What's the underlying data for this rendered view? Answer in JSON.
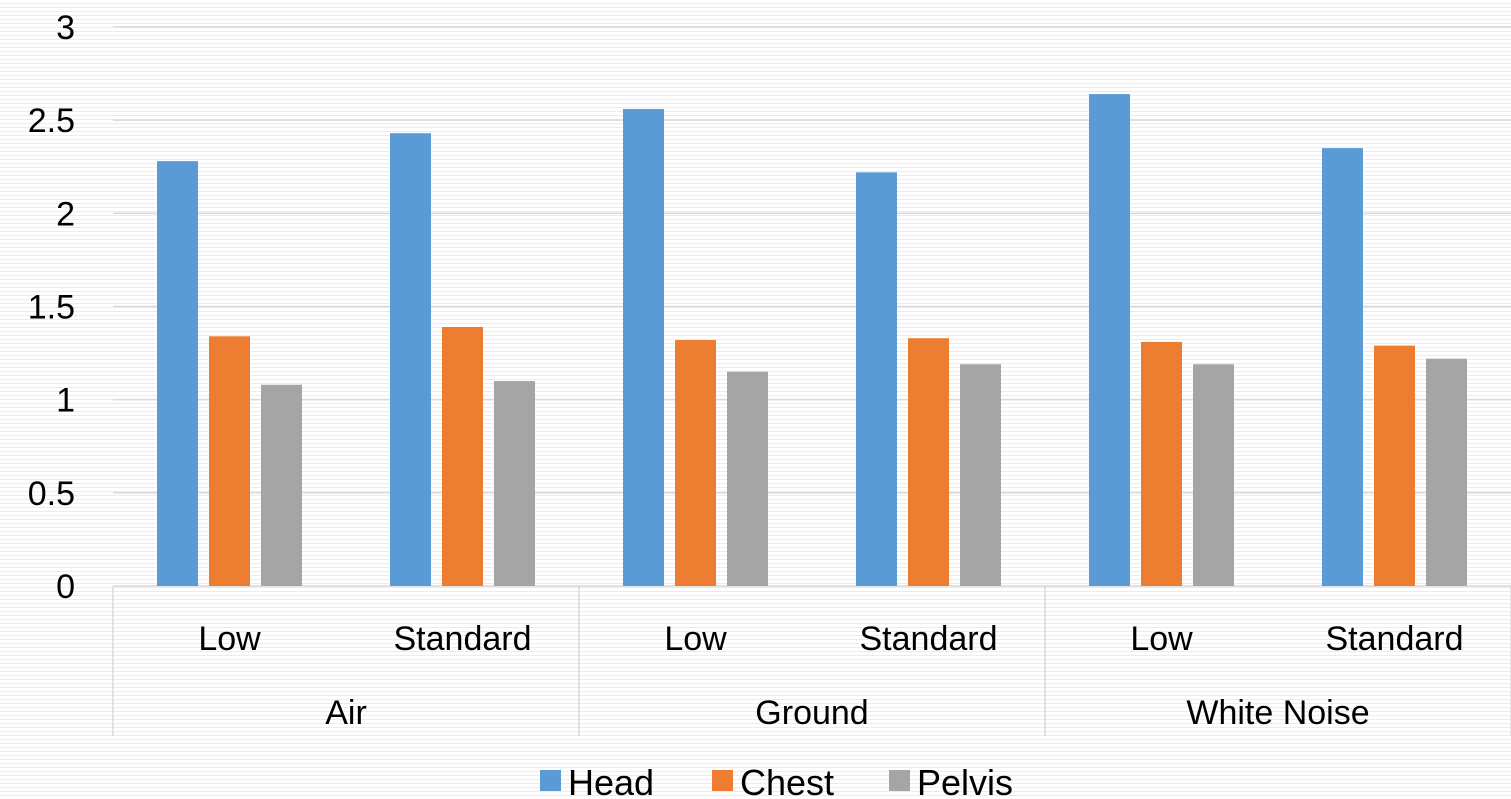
{
  "chart_data": {
    "type": "bar",
    "categories": [
      {
        "label": "Low",
        "group": "Air"
      },
      {
        "label": "Standard",
        "group": "Air"
      },
      {
        "label": "Low",
        "group": "Ground"
      },
      {
        "label": "Standard",
        "group": "Ground"
      },
      {
        "label": "Low",
        "group": "White Noise"
      },
      {
        "label": "Standard",
        "group": "White Noise"
      }
    ],
    "groups": [
      "Air",
      "Ground",
      "White Noise"
    ],
    "series": [
      {
        "name": "Head",
        "color": "#5b9bd5",
        "values": [
          2.28,
          2.43,
          2.56,
          2.22,
          2.64,
          2.35
        ]
      },
      {
        "name": "Chest",
        "color": "#ed7d31",
        "values": [
          1.34,
          1.39,
          1.32,
          1.33,
          1.31,
          1.29
        ]
      },
      {
        "name": "Pelvis",
        "color": "#a5a5a5",
        "values": [
          1.08,
          1.1,
          1.15,
          1.19,
          1.19,
          1.22
        ]
      }
    ],
    "ylim": [
      0,
      3
    ],
    "yticks": [
      "0",
      "0.5",
      "1",
      "1.5",
      "2",
      "2.5",
      "3"
    ],
    "title": "",
    "xlabel": "",
    "ylabel": "",
    "grid": true,
    "legend_position": "bottom"
  }
}
